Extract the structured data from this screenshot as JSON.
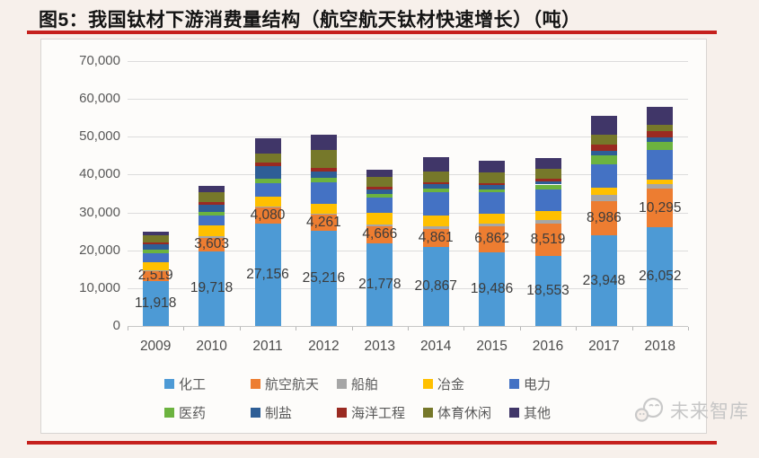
{
  "title": "图5：我国钛材下游消费量结构（航空航天钛材快速增长）（吨）",
  "accent_color": "#C5201D",
  "watermark": {
    "text": "未来智库",
    "icon": "chat-bubbles-logo",
    "color": "#C6C6C6"
  },
  "chart_data": {
    "type": "bar",
    "stacked": true,
    "title": "我国钛材下游消费量结构",
    "unit": "吨",
    "grid": true,
    "legend_position": "bottom",
    "ylim": [
      0,
      70000
    ],
    "x": [
      "2009",
      "2010",
      "2011",
      "2012",
      "2013",
      "2014",
      "2015",
      "2016",
      "2017",
      "2018"
    ],
    "y_ticks": [
      {
        "value": 0,
        "label": "0"
      },
      {
        "value": 10000,
        "label": "10,000"
      },
      {
        "value": 20000,
        "label": "20,000"
      },
      {
        "value": 30000,
        "label": "30,000"
      },
      {
        "value": 40000,
        "label": "40,000"
      },
      {
        "value": 50000,
        "label": "50,000"
      },
      {
        "value": 60000,
        "label": "60,000"
      },
      {
        "value": 70000,
        "label": "70,000"
      }
    ],
    "series": [
      {
        "name": "化工",
        "color": "#4D9AD5",
        "values": [
          11918,
          19718,
          27156,
          25216,
          21778,
          20867,
          19486,
          18553,
          23948,
          26052
        ],
        "labels": [
          "11,918",
          "19,718",
          "27,156",
          "25,216",
          "21,778",
          "20,867",
          "19,486",
          "18,553",
          "23,948",
          "26,052"
        ]
      },
      {
        "name": "航空航天",
        "color": "#ED7D31",
        "values": [
          2519,
          3603,
          4080,
          4261,
          4666,
          4861,
          6862,
          8519,
          8986,
          10295
        ],
        "labels": [
          "2,519",
          "3,603",
          "4,080",
          "4,261",
          "4,666",
          "4,861",
          "6,862",
          "8,519",
          "8,986",
          "10,295"
        ]
      },
      {
        "name": "船舶",
        "color": "#A6A6A6",
        "values": [
          300,
          400,
          300,
          300,
          400,
          700,
          800,
          900,
          1800,
          1200
        ]
      },
      {
        "name": "冶金",
        "color": "#FFC000",
        "values": [
          2200,
          2800,
          2700,
          2600,
          3000,
          2800,
          2600,
          2300,
          1700,
          1100
        ]
      },
      {
        "name": "电力",
        "color": "#4472C4",
        "values": [
          2300,
          2600,
          3500,
          5500,
          4200,
          6200,
          5500,
          5800,
          6300,
          7800
        ]
      },
      {
        "name": "医药",
        "color": "#6CB33F",
        "values": [
          900,
          900,
          1100,
          1200,
          800,
          800,
          900,
          1300,
          2300,
          2100
        ]
      },
      {
        "name": "制盐",
        "color": "#2E5E96",
        "values": [
          1500,
          2000,
          3300,
          1800,
          1300,
          1200,
          1100,
          900,
          1200,
          1200
        ]
      },
      {
        "name": "海洋工程",
        "color": "#9A2A21",
        "values": [
          500,
          700,
          1000,
          800,
          700,
          500,
          500,
          600,
          1700,
          1700
        ]
      },
      {
        "name": "体育休闲",
        "color": "#76782A",
        "values": [
          1800,
          2700,
          2400,
          4800,
          2600,
          3000,
          2800,
          2600,
          2500,
          1800
        ]
      },
      {
        "name": "其他",
        "color": "#403668",
        "values": [
          1063,
          1579,
          3964,
          4023,
          1856,
          3572,
          3152,
          2828,
          5100,
          4700
        ]
      }
    ]
  }
}
